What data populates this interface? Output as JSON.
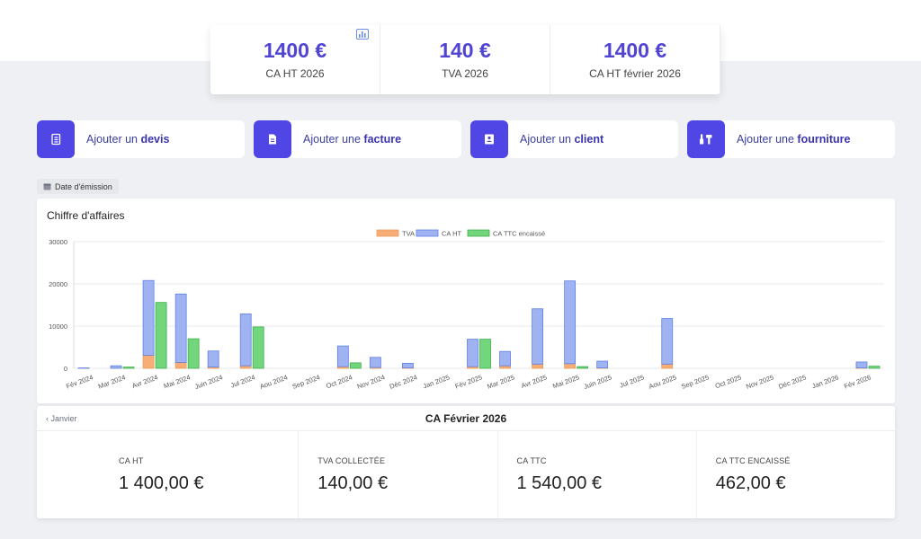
{
  "kpis": [
    {
      "value": "1400 €",
      "label": "CA HT 2026"
    },
    {
      "value": "140 €",
      "label": "TVA 2026"
    },
    {
      "value": "1400 €",
      "label": "CA HT février 2026"
    }
  ],
  "kpi_icon": "bar-chart-icon",
  "actions": [
    {
      "prefix": "Ajouter un",
      "strong": "devis",
      "icon": "notebook-icon"
    },
    {
      "prefix": "Ajouter une",
      "strong": "facture",
      "icon": "invoice-icon"
    },
    {
      "prefix": "Ajouter un",
      "strong": "client",
      "icon": "contact-card-icon"
    },
    {
      "prefix": "Ajouter une",
      "strong": "fourniture",
      "icon": "tools-icon"
    }
  ],
  "date_filter": {
    "label": "Date d'émission",
    "icon": "calendar-icon"
  },
  "chart_data": {
    "type": "bar",
    "title": "Chiffre d'affaires",
    "legend_position": "top-center",
    "categories": [
      "Fév 2024",
      "Mar 2024",
      "Avr 2024",
      "Mai 2024",
      "Juin 2024",
      "Jul 2024",
      "Aou 2024",
      "Sep 2024",
      "Oct 2024",
      "Nov 2024",
      "Déc 2024",
      "Jan 2025",
      "Fév 2025",
      "Mar 2025",
      "Avr 2025",
      "Mai 2025",
      "Juin 2025",
      "Jul 2025",
      "Aou 2025",
      "Sep 2025",
      "Oct 2025",
      "Nov 2025",
      "Déc 2025",
      "Jan 2026",
      "Fév 2026"
    ],
    "ylim": [
      0,
      30000
    ],
    "yticks": [
      0,
      10000,
      20000,
      30000
    ],
    "grid": true,
    "series": [
      {
        "name": "TVA",
        "color": "#f6ae76",
        "stacked_with": "CA HT",
        "values": [
          0,
          0,
          3100,
          1400,
          300,
          600,
          0,
          0,
          400,
          200,
          100,
          0,
          400,
          600,
          1000,
          1100,
          100,
          0,
          1000,
          0,
          0,
          0,
          0,
          0,
          100
        ]
      },
      {
        "name": "CA HT",
        "color": "#9fb3f3",
        "stacked_with": "TVA",
        "values": [
          100,
          600,
          17700,
          16200,
          3800,
          12300,
          0,
          0,
          4900,
          2400,
          1100,
          0,
          6500,
          3400,
          13100,
          19600,
          1600,
          0,
          10800,
          0,
          0,
          0,
          0,
          0,
          1400
        ]
      },
      {
        "name": "CA TTC encaissé",
        "color": "#72d67c",
        "values": [
          0,
          300,
          15600,
          7000,
          0,
          9800,
          0,
          0,
          1300,
          0,
          0,
          0,
          6900,
          0,
          0,
          400,
          0,
          0,
          0,
          0,
          0,
          0,
          0,
          0,
          500
        ]
      }
    ]
  },
  "month": {
    "prev_label": "Janvier",
    "title": "CA Février 2026",
    "stats": [
      {
        "label": "CA HT",
        "value": "1 400,00 €"
      },
      {
        "label": "TVA COLLECTÉE",
        "value": "140,00 €"
      },
      {
        "label": "CA TTC",
        "value": "1 540,00 €"
      },
      {
        "label": "CA TTC ENCAISSÉ",
        "value": "462,00 €"
      }
    ]
  }
}
